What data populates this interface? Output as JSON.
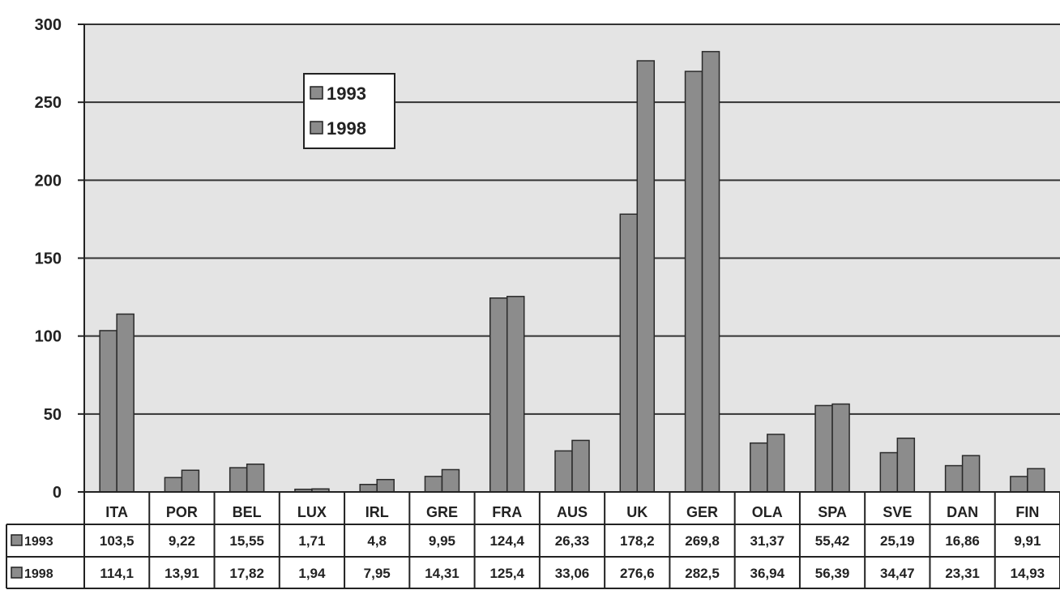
{
  "chart_data": {
    "type": "bar",
    "categories": [
      "ITA",
      "POR",
      "BEL",
      "LUX",
      "IRL",
      "GRE",
      "FRA",
      "AUS",
      "UK",
      "GER",
      "OLA",
      "SPA",
      "SVE",
      "DAN",
      "FIN"
    ],
    "series": [
      {
        "name": "1993",
        "values": [
          103.5,
          9.22,
          15.55,
          1.71,
          4.8,
          9.95,
          124.4,
          26.33,
          178.2,
          269.8,
          31.37,
          55.42,
          25.19,
          16.86,
          9.91
        ],
        "labels": [
          "103,5",
          "9,22",
          "15,55",
          "1,71",
          "4,8",
          "9,95",
          "124,4",
          "26,33",
          "178,2",
          "269,8",
          "31,37",
          "55,42",
          "25,19",
          "16,86",
          "9,91"
        ]
      },
      {
        "name": "1998",
        "values": [
          114.1,
          13.91,
          17.82,
          1.94,
          7.95,
          14.31,
          125.4,
          33.06,
          276.6,
          282.5,
          36.94,
          56.39,
          34.47,
          23.31,
          14.93
        ],
        "labels": [
          "114,1",
          "13,91",
          "17,82",
          "1,94",
          "7,95",
          "14,31",
          "125,4",
          "33,06",
          "276,6",
          "282,5",
          "36,94",
          "56,39",
          "34,47",
          "23,31",
          "14,93"
        ]
      }
    ],
    "ylim": [
      0,
      300
    ],
    "yticks": [
      "0",
      "50",
      "100",
      "150",
      "200",
      "250",
      "300"
    ],
    "grid": true,
    "legend": "top-left",
    "data_table": true,
    "colors": {
      "bar": "#8c8c8c",
      "bar_edge": "#2a2a2a",
      "plot_bg": "#e4e4e4",
      "grid": "#333333"
    }
  }
}
